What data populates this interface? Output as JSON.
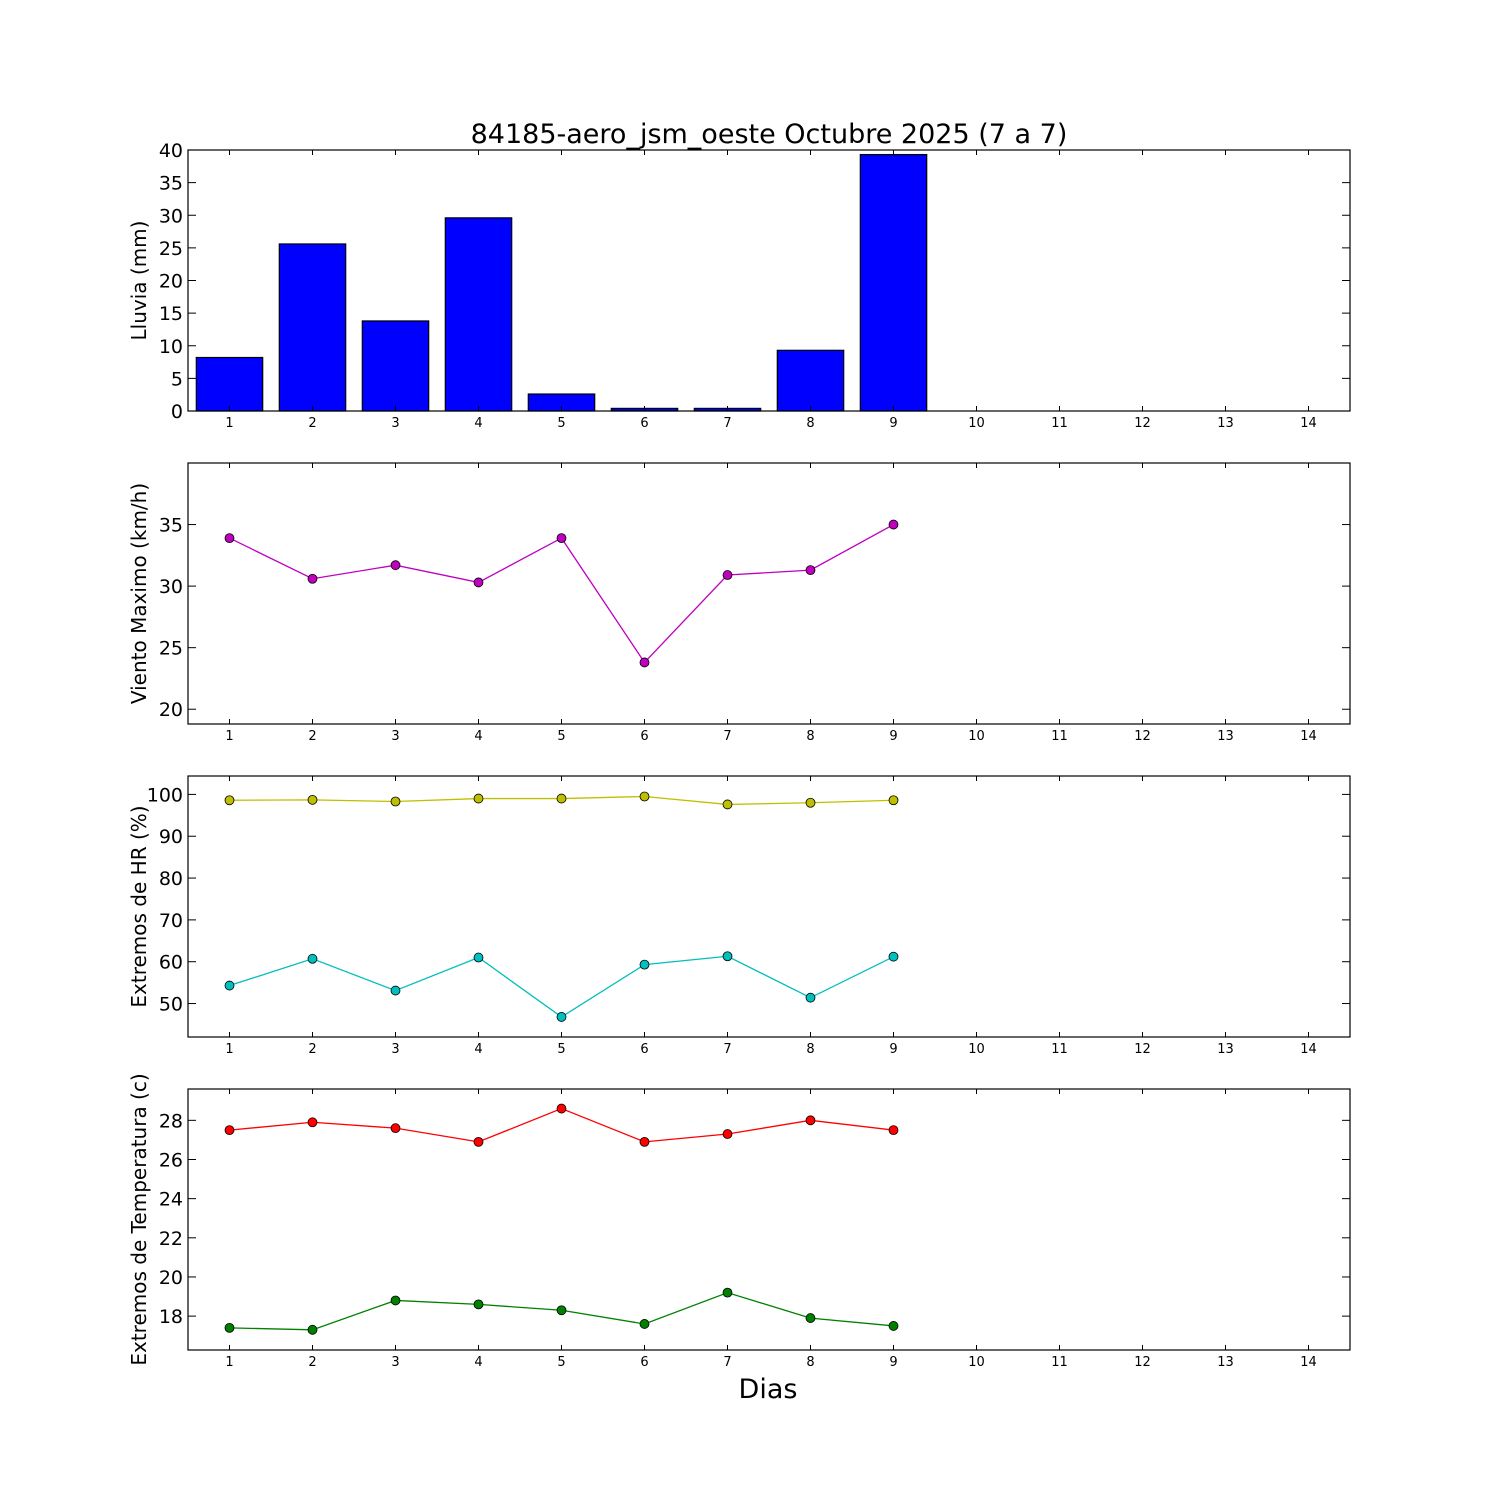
{
  "title": "84185-aero_jsm_oeste Octubre 2025  (7 a 7)",
  "xlabel": "Dias",
  "colors": {
    "lluvia": "#0000ff",
    "viento": "#bf00bf",
    "hr_max": "#bfbf00",
    "hr_min": "#00bfbf",
    "temp_max": "#ff0000",
    "temp_min": "#008000"
  },
  "chart_data": [
    {
      "type": "bar",
      "id": "lluvia",
      "ylabel": "Lluvia (mm)",
      "x": [
        1,
        2,
        3,
        4,
        5,
        6,
        7,
        8,
        9
      ],
      "values": [
        8.2,
        25.6,
        13.8,
        29.6,
        2.6,
        0.4,
        0.4,
        9.3,
        39.3
      ],
      "xlim": [
        0.5,
        14.5
      ],
      "ylim": [
        0,
        40
      ],
      "xticks": [
        1,
        2,
        3,
        4,
        5,
        6,
        7,
        8,
        9,
        10,
        11,
        12,
        13,
        14
      ],
      "yticks": [
        0,
        5,
        10,
        15,
        20,
        25,
        30,
        35,
        40
      ]
    },
    {
      "type": "line",
      "id": "viento",
      "ylabel": "Viento Maximo (km/h)",
      "x": [
        1,
        2,
        3,
        4,
        5,
        6,
        7,
        8,
        9
      ],
      "series": [
        {
          "key": "viento",
          "values": [
            33.9,
            30.6,
            31.7,
            30.3,
            33.9,
            23.8,
            30.9,
            31.3,
            35.0
          ]
        }
      ],
      "xlim": [
        0.5,
        14.5
      ],
      "ylim": [
        18.8,
        40.0
      ],
      "xticks": [
        1,
        2,
        3,
        4,
        5,
        6,
        7,
        8,
        9,
        10,
        11,
        12,
        13,
        14
      ],
      "yticks": [
        20,
        25,
        30,
        35
      ]
    },
    {
      "type": "line",
      "id": "hr",
      "ylabel": "Extremos de HR (%)",
      "x": [
        1,
        2,
        3,
        4,
        5,
        6,
        7,
        8,
        9
      ],
      "series": [
        {
          "key": "hr_max",
          "values": [
            98.6,
            98.7,
            98.3,
            99.0,
            99.0,
            99.5,
            97.6,
            98.0,
            98.6
          ]
        },
        {
          "key": "hr_min",
          "values": [
            54.3,
            60.7,
            53.1,
            61.0,
            46.8,
            59.3,
            61.3,
            51.4,
            61.2
          ]
        }
      ],
      "xlim": [
        0.5,
        14.5
      ],
      "ylim": [
        42.0,
        104.4
      ],
      "xticks": [
        1,
        2,
        3,
        4,
        5,
        6,
        7,
        8,
        9,
        10,
        11,
        12,
        13,
        14
      ],
      "yticks": [
        50,
        60,
        70,
        80,
        90,
        100
      ]
    },
    {
      "type": "line",
      "id": "temp",
      "ylabel": "Extremos de Temperatura (c)",
      "x": [
        1,
        2,
        3,
        4,
        5,
        6,
        7,
        8,
        9
      ],
      "series": [
        {
          "key": "temp_max",
          "values": [
            27.5,
            27.9,
            27.6,
            26.9,
            28.6,
            26.9,
            27.3,
            28.0,
            27.5
          ]
        },
        {
          "key": "temp_min",
          "values": [
            17.4,
            17.3,
            18.8,
            18.6,
            18.3,
            17.6,
            19.2,
            17.9,
            17.5
          ]
        }
      ],
      "xlim": [
        0.5,
        14.5
      ],
      "ylim": [
        16.27,
        29.6
      ],
      "xticks": [
        1,
        2,
        3,
        4,
        5,
        6,
        7,
        8,
        9,
        10,
        11,
        12,
        13,
        14
      ],
      "yticks": [
        18,
        20,
        22,
        24,
        26,
        28
      ]
    }
  ]
}
